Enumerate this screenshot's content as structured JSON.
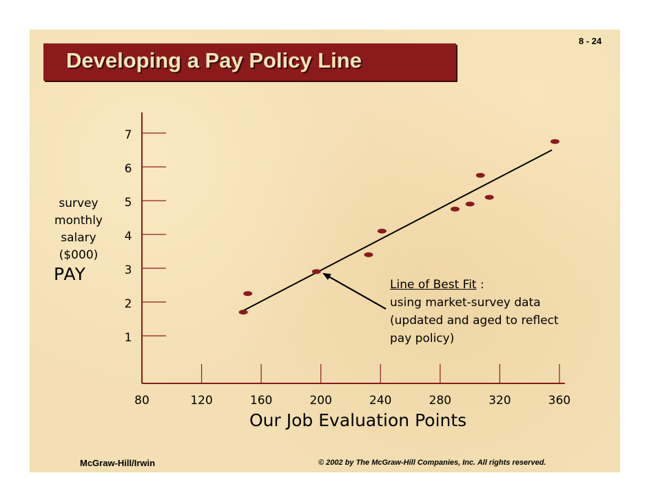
{
  "slide": {
    "number": "8 - 24",
    "title": "Developing a Pay  Policy Line",
    "footer_left": "McGraw-Hill/Irwin",
    "footer_right": "© 2002 by The McGraw-Hill Companies, Inc. All rights reserved."
  },
  "annotation": {
    "heading": "Line of Best Fit",
    "colon": " :",
    "lines": [
      "using market-survey data",
      "(updated and aged to reflect",
      "pay policy)"
    ]
  },
  "chart_data": {
    "type": "scatter",
    "xlabel": "Our Job Evaluation Points",
    "ylabel_lines": [
      "survey",
      "monthly",
      "salary",
      "($000)"
    ],
    "ylabel_word": "PAY",
    "x_ticks": [
      "80",
      "120",
      "160",
      "200",
      "240",
      "280",
      "320",
      "360"
    ],
    "y_ticks": [
      "1",
      "2",
      "3",
      "4",
      "5",
      "6",
      "7"
    ],
    "xlim": [
      80,
      360
    ],
    "ylim": [
      0,
      7
    ],
    "grid": false,
    "points": [
      {
        "x": 148,
        "y": 1.7
      },
      {
        "x": 151,
        "y": 2.25
      },
      {
        "x": 197,
        "y": 2.9
      },
      {
        "x": 232,
        "y": 3.4
      },
      {
        "x": 241,
        "y": 4.1
      },
      {
        "x": 290,
        "y": 4.75
      },
      {
        "x": 300,
        "y": 4.9
      },
      {
        "x": 307,
        "y": 5.75
      },
      {
        "x": 313,
        "y": 5.1
      },
      {
        "x": 357,
        "y": 6.75
      }
    ],
    "best_fit": {
      "x": [
        146,
        355
      ],
      "y": [
        1.7,
        6.5
      ]
    },
    "arrow_target": {
      "x": 200,
      "y": 2.8
    },
    "colors": {
      "points": "#8b1a1a",
      "axis": "#8b1a1a",
      "line": "#000000"
    }
  }
}
